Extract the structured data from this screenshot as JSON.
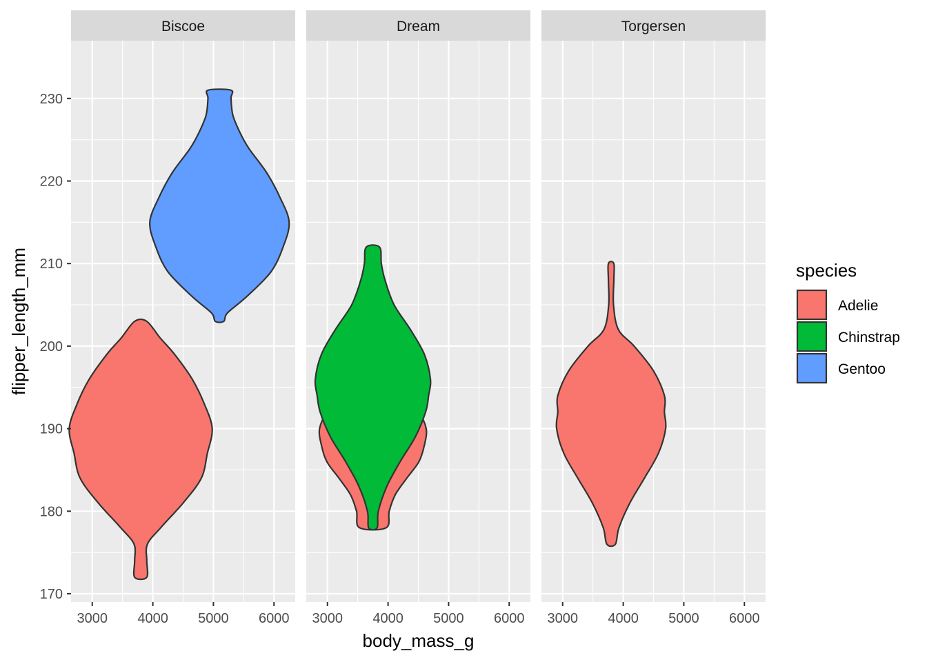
{
  "chart_data": {
    "type": "violin",
    "facets": [
      "Biscoe",
      "Dream",
      "Torgersen"
    ],
    "xlabel": "body_mass_g",
    "ylabel": "flipper_length_mm",
    "xlim": [
      2650,
      6350
    ],
    "ylim": [
      169,
      237
    ],
    "x_ticks": [
      3000,
      4000,
      5000,
      6000
    ],
    "y_ticks": [
      170,
      180,
      190,
      200,
      210,
      220,
      230
    ],
    "legend": {
      "title": "species",
      "position": "right",
      "items": [
        {
          "label": "Adelie",
          "color": "#F8766D"
        },
        {
          "label": "Chinstrap",
          "color": "#00BA38"
        },
        {
          "label": "Gentoo",
          "color": "#619CFF"
        }
      ]
    },
    "violins": [
      {
        "facet": "Biscoe",
        "species": "Adelie",
        "center_x": 3800,
        "profile": [
          [
            172,
            100
          ],
          [
            174,
            100
          ],
          [
            176,
            110
          ],
          [
            178,
            330
          ],
          [
            181,
            700
          ],
          [
            184,
            1000
          ],
          [
            187,
            1100
          ],
          [
            190,
            1180
          ],
          [
            193,
            1050
          ],
          [
            196,
            850
          ],
          [
            199,
            560
          ],
          [
            201,
            320
          ],
          [
            203,
            100
          ]
        ]
      },
      {
        "facet": "Biscoe",
        "species": "Gentoo",
        "center_x": 5100,
        "profile": [
          [
            203,
            70
          ],
          [
            204,
            130
          ],
          [
            206,
            450
          ],
          [
            209,
            850
          ],
          [
            212,
            1050
          ],
          [
            215,
            1150
          ],
          [
            218,
            1000
          ],
          [
            221,
            780
          ],
          [
            224,
            480
          ],
          [
            226,
            330
          ],
          [
            228,
            220
          ],
          [
            230,
            190
          ],
          [
            231,
            190
          ]
        ]
      },
      {
        "facet": "Dream",
        "species": "Adelie",
        "center_x": 3750,
        "profile": [
          [
            178,
            220
          ],
          [
            180,
            270
          ],
          [
            182,
            370
          ],
          [
            184,
            560
          ],
          [
            186,
            760
          ],
          [
            188,
            850
          ],
          [
            190,
            880
          ],
          [
            192,
            750
          ],
          [
            194,
            450
          ],
          [
            196,
            180
          ],
          [
            198,
            0
          ]
        ]
      },
      {
        "facet": "Dream",
        "species": "Chinstrap",
        "center_x": 3750,
        "profile": [
          [
            178,
            70
          ],
          [
            180,
            90
          ],
          [
            183,
            230
          ],
          [
            186,
            450
          ],
          [
            189,
            700
          ],
          [
            192,
            870
          ],
          [
            194,
            920
          ],
          [
            196,
            950
          ],
          [
            199,
            850
          ],
          [
            202,
            620
          ],
          [
            205,
            350
          ],
          [
            208,
            200
          ],
          [
            210,
            140
          ],
          [
            212,
            110
          ]
        ]
      },
      {
        "facet": "Torgersen",
        "species": "Adelie",
        "center_x": 3800,
        "profile": [
          [
            176,
            70
          ],
          [
            178,
            130
          ],
          [
            181,
            310
          ],
          [
            184,
            550
          ],
          [
            187,
            780
          ],
          [
            190,
            900
          ],
          [
            192,
            880
          ],
          [
            194,
            880
          ],
          [
            197,
            700
          ],
          [
            200,
            380
          ],
          [
            202,
            120
          ],
          [
            205,
            40
          ],
          [
            208,
            45
          ],
          [
            210,
            45
          ]
        ]
      }
    ]
  }
}
